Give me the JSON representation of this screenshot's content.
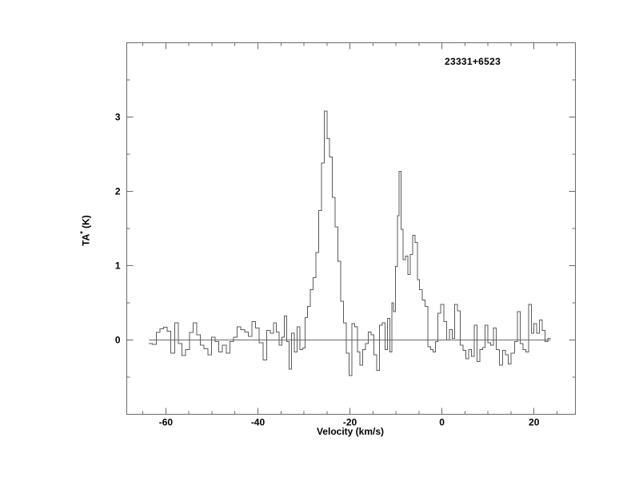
{
  "figure": {
    "annotation": "23331+6523",
    "xlabel": "Velocity (km/s)",
    "ylabel": {
      "main": "TA",
      "sup": "*",
      "unit": " (K)"
    }
  },
  "chart_data": {
    "type": "line",
    "style": "histogram-step",
    "title": "23331+6523",
    "xlabel": "Velocity (km/s)",
    "ylabel": "TA* (K)",
    "xlim": [
      -68.5,
      29
    ],
    "ylim": [
      -1,
      4
    ],
    "x_major_ticks": [
      -60,
      -40,
      -20,
      0,
      20
    ],
    "x_major_tick_labels": [
      "-60",
      "-40",
      "-20",
      "0",
      "20"
    ],
    "x_minor_ticks": [
      -65,
      -55,
      -50,
      -45,
      -35,
      -30,
      -25,
      -15,
      -10,
      -5,
      5,
      10,
      15,
      25
    ],
    "y_major_ticks": [
      0,
      1,
      2,
      3
    ],
    "y_major_tick_labels": [
      "0",
      "1",
      "2",
      "3"
    ],
    "y_minor_ticks": [
      -0.5,
      0.5,
      1.5,
      2.5,
      3.5
    ],
    "zero_line": {
      "y": 0,
      "x_start": -63.6,
      "x_end": 23.6
    },
    "grid": false,
    "legend": null,
    "frame_color": "#6a6a6a",
    "line_color": "#5a5a5a",
    "main_peak": {
      "velocity": -25.3,
      "peak_K": 3.08
    },
    "secondary_peak": {
      "velocity": -9.1,
      "peak_K": 2.27
    },
    "points": [
      [
        -63.3,
        -0.05
      ],
      [
        -62.5,
        -0.06
      ],
      [
        -61.7,
        0.1
      ],
      [
        -60.9,
        0.15
      ],
      [
        -60.1,
        0.17
      ],
      [
        -59.3,
        0.12
      ],
      [
        -58.5,
        -0.18
      ],
      [
        -57.7,
        0.23
      ],
      [
        -56.9,
        -0.05
      ],
      [
        -56.1,
        -0.21
      ],
      [
        -55.3,
        -0.13
      ],
      [
        -54.5,
        0.1
      ],
      [
        -53.7,
        0.23
      ],
      [
        -52.9,
        0.07
      ],
      [
        -52.1,
        -0.07
      ],
      [
        -51.3,
        -0.12
      ],
      [
        -50.5,
        -0.2
      ],
      [
        -49.7,
        0.04
      ],
      [
        -48.9,
        -0.02
      ],
      [
        -48.1,
        -0.16
      ],
      [
        -47.3,
        -0.07
      ],
      [
        -46.5,
        -0.18
      ],
      [
        -45.7,
        -0.02
      ],
      [
        -44.9,
        0.04
      ],
      [
        -44.1,
        0.18
      ],
      [
        -43.3,
        0.14
      ],
      [
        -42.5,
        0.11
      ],
      [
        -41.7,
        0.05
      ],
      [
        -40.9,
        0.25
      ],
      [
        -40.1,
        0.16
      ],
      [
        -39.3,
        -0.04
      ],
      [
        -38.5,
        -0.27
      ],
      [
        -37.7,
        0.13
      ],
      [
        -36.9,
        0.09
      ],
      [
        -36.3,
        0.23
      ],
      [
        -35.7,
        0.11
      ],
      [
        -35.1,
        -0.07
      ],
      [
        -34.5,
        0.04
      ],
      [
        -34.0,
        0.32
      ],
      [
        -33.5,
        -0.02
      ],
      [
        -33.0,
        -0.39
      ],
      [
        -32.4,
        0.09
      ],
      [
        -31.8,
        -0.16
      ],
      [
        -31.2,
        0.18
      ],
      [
        -30.6,
        -0.13
      ],
      [
        -30.0,
        -0.11
      ],
      [
        -29.5,
        0.3
      ],
      [
        -28.9,
        0.45
      ],
      [
        -28.3,
        0.68
      ],
      [
        -27.7,
        0.84
      ],
      [
        -27.1,
        1.18
      ],
      [
        -26.5,
        1.74
      ],
      [
        -25.9,
        2.38
      ],
      [
        -25.3,
        3.08
      ],
      [
        -24.7,
        2.71
      ],
      [
        -24.1,
        2.46
      ],
      [
        -23.5,
        1.92
      ],
      [
        -22.9,
        1.52
      ],
      [
        -22.3,
        1.06
      ],
      [
        -21.7,
        0.52
      ],
      [
        -21.1,
        0.23
      ],
      [
        -20.5,
        -0.18
      ],
      [
        -19.9,
        -0.48
      ],
      [
        -19.3,
        0.22
      ],
      [
        -18.7,
        0.18
      ],
      [
        -18.1,
        -0.16
      ],
      [
        -17.5,
        -0.34
      ],
      [
        -16.9,
        -0.13
      ],
      [
        -16.3,
        -0.05
      ],
      [
        -15.7,
        0.11
      ],
      [
        -15.1,
        0.07
      ],
      [
        -14.5,
        -0.2
      ],
      [
        -13.9,
        -0.41
      ],
      [
        -13.3,
        0.2
      ],
      [
        -12.7,
        0.23
      ],
      [
        -12.1,
        -0.13
      ],
      [
        -11.6,
        0.29
      ],
      [
        -11.1,
        -0.16
      ],
      [
        -10.7,
        0.5
      ],
      [
        -10.3,
        0.38
      ],
      [
        -9.9,
        0.99
      ],
      [
        -9.5,
        1.67
      ],
      [
        -9.1,
        2.27
      ],
      [
        -8.7,
        1.49
      ],
      [
        -8.2,
        1.08
      ],
      [
        -7.7,
        1.13
      ],
      [
        -7.2,
        0.88
      ],
      [
        -6.6,
        1.15
      ],
      [
        -6.1,
        1.41
      ],
      [
        -5.6,
        1.31
      ],
      [
        -5.1,
        0.81
      ],
      [
        -4.6,
        0.68
      ],
      [
        -4.0,
        0.54
      ],
      [
        -3.4,
        0.45
      ],
      [
        -2.8,
        -0.09
      ],
      [
        -2.2,
        -0.13
      ],
      [
        -1.7,
        -0.16
      ],
      [
        -1.2,
        -0.02
      ],
      [
        -0.6,
        0.36
      ],
      [
        0.1,
        0.48
      ],
      [
        0.7,
        0.25
      ],
      [
        1.3,
        0.0
      ],
      [
        1.9,
        0.14
      ],
      [
        2.5,
        0.02
      ],
      [
        3.1,
        0.48
      ],
      [
        3.7,
        0.39
      ],
      [
        4.3,
        -0.07
      ],
      [
        4.9,
        -0.14
      ],
      [
        5.5,
        -0.25
      ],
      [
        6.1,
        -0.13
      ],
      [
        6.7,
        -0.22
      ],
      [
        7.3,
        0.2
      ],
      [
        7.9,
        -0.29
      ],
      [
        8.5,
        -0.13
      ],
      [
        9.1,
        -0.1
      ],
      [
        9.7,
        0.2
      ],
      [
        10.3,
        -0.04
      ],
      [
        10.9,
        -0.07
      ],
      [
        11.5,
        0.16
      ],
      [
        12.1,
        -0.13
      ],
      [
        12.8,
        -0.34
      ],
      [
        13.5,
        -0.14
      ],
      [
        14.1,
        -0.2
      ],
      [
        14.7,
        -0.32
      ],
      [
        15.4,
        -0.18
      ],
      [
        16.1,
        -0.02
      ],
      [
        16.7,
        0.38
      ],
      [
        17.3,
        -0.05
      ],
      [
        17.9,
        -0.13
      ],
      [
        18.5,
        -0.16
      ],
      [
        19.1,
        0.48
      ],
      [
        19.7,
        0.09
      ],
      [
        20.3,
        0.22
      ],
      [
        20.9,
        0.09
      ],
      [
        21.5,
        0.27
      ],
      [
        22.1,
        0.13
      ],
      [
        22.7,
        -0.02
      ],
      [
        23.3,
        0.02
      ]
    ]
  }
}
